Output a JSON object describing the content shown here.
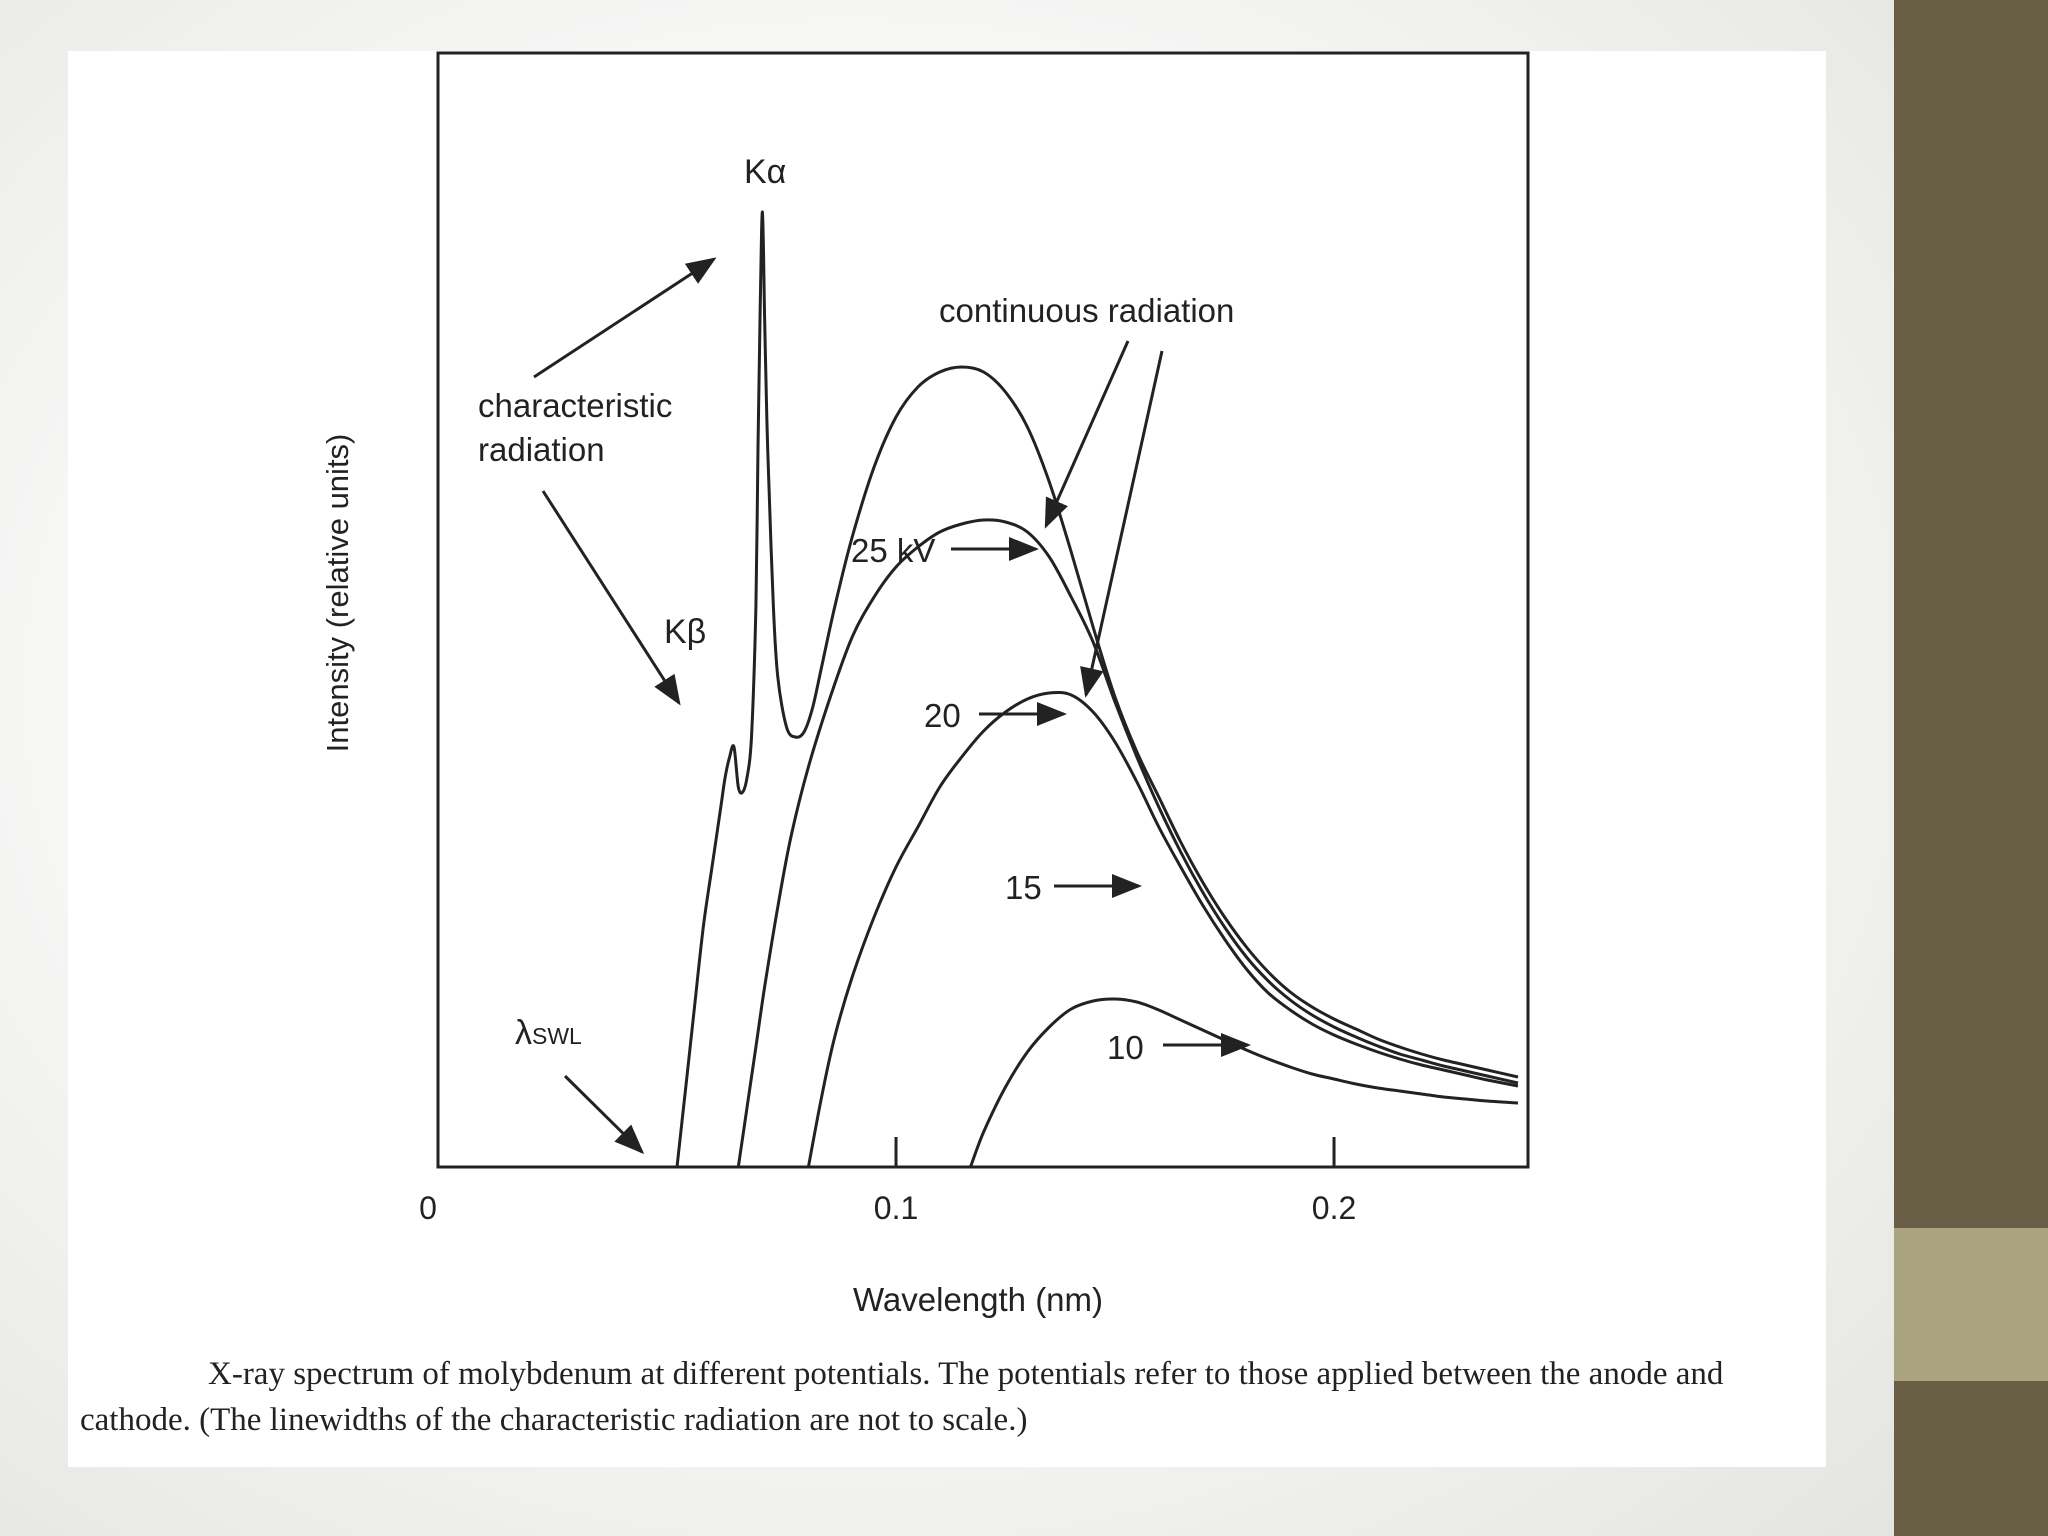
{
  "caption": "X-ray spectrum of molybdenum at different potentials. The potentials refer to those applied between the anode and cathode. (The linewidths of the characteristic radiation are not to scale.)",
  "colors": {
    "background": "#ffffff",
    "ink": "#222222",
    "accent_dark": "#695f47",
    "accent_light": "#a9a47f"
  },
  "chart_data": {
    "type": "line",
    "xlabel": "Wavelength (nm)",
    "ylabel": "Intensity (relative units)",
    "xlim": [
      0,
      0.242
    ],
    "ylim": [
      0,
      1
    ],
    "x_ticks": [
      {
        "value": 0,
        "label": "0"
      },
      {
        "value": 0.1,
        "label": "0.1"
      },
      {
        "value": 0.2,
        "label": "0.2"
      }
    ],
    "grid": false,
    "legend": "none",
    "series": [
      {
        "name": "25 kV",
        "x": [
          0.05,
          0.052,
          0.054,
          0.056,
          0.058,
          0.06,
          0.061,
          0.062,
          0.063,
          0.064,
          0.065,
          0.066,
          0.067,
          0.068,
          0.0685,
          0.069,
          0.0695,
          0.07,
          0.0705,
          0.071,
          0.072,
          0.073,
          0.075,
          0.077,
          0.079,
          0.081,
          0.083,
          0.086,
          0.09,
          0.095,
          0.1,
          0.105,
          0.11,
          0.115,
          0.12,
          0.125,
          0.13,
          0.135,
          0.14,
          0.145,
          0.15,
          0.155,
          0.16,
          0.165,
          0.17,
          0.175,
          0.18,
          0.185,
          0.19,
          0.195,
          0.2,
          0.205,
          0.21,
          0.215,
          0.22,
          0.225,
          0.23,
          0.235,
          0.242
        ],
        "y": [
          0.0,
          0.08,
          0.16,
          0.24,
          0.3,
          0.36,
          0.39,
          0.41,
          0.42,
          0.38,
          0.375,
          0.39,
          0.43,
          0.56,
          0.72,
          0.86,
          0.955,
          0.85,
          0.75,
          0.68,
          0.56,
          0.49,
          0.44,
          0.43,
          0.435,
          0.46,
          0.5,
          0.56,
          0.63,
          0.7,
          0.75,
          0.78,
          0.795,
          0.8,
          0.795,
          0.775,
          0.74,
          0.685,
          0.615,
          0.54,
          0.47,
          0.415,
          0.37,
          0.325,
          0.285,
          0.25,
          0.22,
          0.195,
          0.175,
          0.16,
          0.148,
          0.138,
          0.128,
          0.12,
          0.113,
          0.107,
          0.102,
          0.097,
          0.09
        ]
      },
      {
        "name": "20",
        "x": [
          0.064,
          0.066,
          0.068,
          0.07,
          0.073,
          0.076,
          0.08,
          0.085,
          0.09,
          0.095,
          0.1,
          0.105,
          0.11,
          0.115,
          0.12,
          0.125,
          0.13,
          0.135,
          0.14,
          0.145,
          0.15,
          0.155,
          0.16,
          0.165,
          0.17,
          0.175,
          0.18,
          0.185,
          0.19,
          0.195,
          0.2,
          0.205,
          0.21,
          0.215,
          0.22,
          0.225,
          0.23,
          0.235,
          0.242
        ],
        "y": [
          0.0,
          0.06,
          0.12,
          0.18,
          0.26,
          0.33,
          0.4,
          0.47,
          0.53,
          0.57,
          0.6,
          0.62,
          0.635,
          0.643,
          0.647,
          0.645,
          0.635,
          0.61,
          0.57,
          0.525,
          0.465,
          0.41,
          0.36,
          0.315,
          0.275,
          0.24,
          0.21,
          0.186,
          0.167,
          0.152,
          0.14,
          0.13,
          0.121,
          0.113,
          0.107,
          0.101,
          0.096,
          0.091,
          0.084
        ]
      },
      {
        "name": "15",
        "x": [
          0.08,
          0.083,
          0.086,
          0.09,
          0.095,
          0.1,
          0.105,
          0.11,
          0.115,
          0.12,
          0.125,
          0.13,
          0.135,
          0.14,
          0.145,
          0.15,
          0.155,
          0.16,
          0.165,
          0.17,
          0.175,
          0.18,
          0.185,
          0.19,
          0.195,
          0.2,
          0.205,
          0.21,
          0.215,
          0.22,
          0.225,
          0.23,
          0.235,
          0.242
        ],
        "y": [
          0.0,
          0.07,
          0.13,
          0.19,
          0.25,
          0.3,
          0.34,
          0.38,
          0.41,
          0.436,
          0.455,
          0.468,
          0.474,
          0.472,
          0.455,
          0.425,
          0.385,
          0.34,
          0.3,
          0.262,
          0.228,
          0.198,
          0.174,
          0.157,
          0.143,
          0.132,
          0.123,
          0.115,
          0.108,
          0.102,
          0.097,
          0.092,
          0.087,
          0.081
        ]
      },
      {
        "name": "10",
        "x": [
          0.117,
          0.12,
          0.125,
          0.13,
          0.135,
          0.14,
          0.145,
          0.15,
          0.155,
          0.16,
          0.165,
          0.17,
          0.175,
          0.18,
          0.185,
          0.19,
          0.195,
          0.2,
          0.205,
          0.21,
          0.215,
          0.22,
          0.225,
          0.23,
          0.235,
          0.242
        ],
        "y": [
          0.0,
          0.035,
          0.08,
          0.115,
          0.14,
          0.158,
          0.166,
          0.168,
          0.165,
          0.157,
          0.147,
          0.137,
          0.127,
          0.117,
          0.108,
          0.1,
          0.093,
          0.088,
          0.083,
          0.079,
          0.076,
          0.073,
          0.07,
          0.068,
          0.066,
          0.064
        ]
      }
    ],
    "annotations": [
      {
        "id": "ka",
        "text": "Kα",
        "anchor": "peak"
      },
      {
        "id": "kb",
        "text": "Kβ",
        "anchor": "peak"
      },
      {
        "id": "char1",
        "text": "characteristic"
      },
      {
        "id": "char2",
        "text": "radiation"
      },
      {
        "id": "cont",
        "text": "continuous radiation"
      },
      {
        "id": "lambda",
        "text": "λ",
        "sub": "SWL"
      },
      {
        "id": "v25",
        "text": "25 kV"
      },
      {
        "id": "v20",
        "text": "20"
      },
      {
        "id": "v15",
        "text": "15"
      },
      {
        "id": "v10",
        "text": "10"
      }
    ]
  }
}
